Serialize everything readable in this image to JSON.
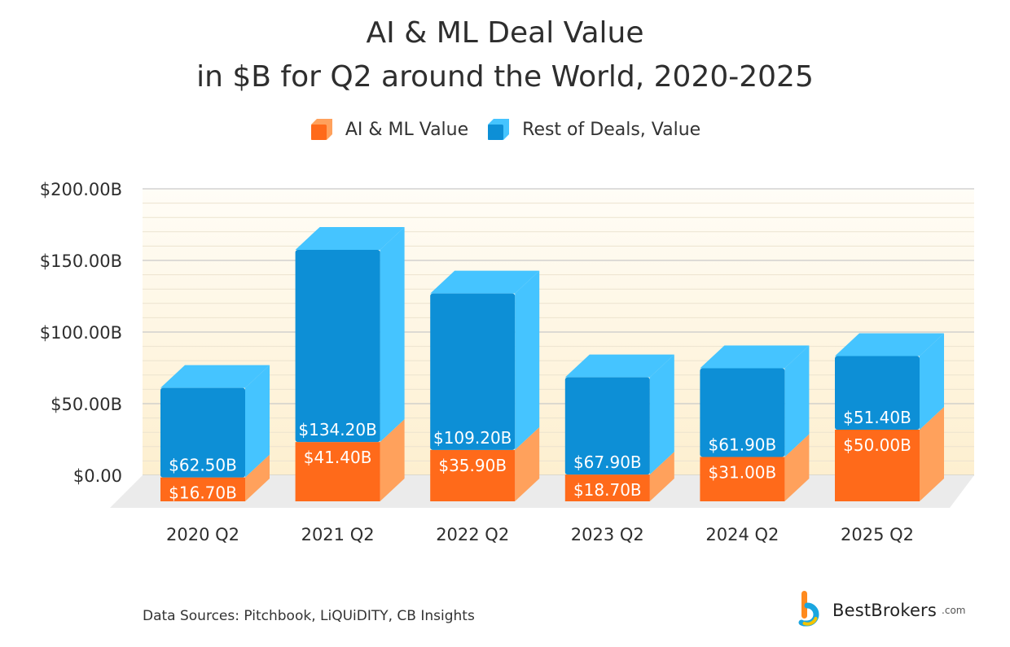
{
  "title_lines": [
    "AI & ML Deal Value",
    "in $B for Q2 around the World, 2020-2025"
  ],
  "legend": {
    "ai_label": "AI & ML Value",
    "rest_label": "Rest of Deals, Value"
  },
  "source_text": "Data Sources: Pitchbook, LiQUiDITY, CB Insights",
  "logo": {
    "name": "BestBrokers",
    "suffix": ".com",
    "icon": "bestbrokers-logo-icon"
  },
  "colors": {
    "ai_front": "#ff6a1a",
    "ai_side": "#ffa15c",
    "rest_front": "#0d8fd6",
    "rest_side": "#45c4ff",
    "rest_top": "#45c4ff",
    "plot_bg_top": "#fffdf7",
    "plot_bg_bottom": "#fdefcf",
    "floor": "#ebebeb"
  },
  "chart_data": {
    "type": "bar",
    "stacked": true,
    "categories": [
      "2020 Q2",
      "2021 Q2",
      "2022 Q2",
      "2023 Q2",
      "2024 Q2",
      "2025 Q2"
    ],
    "series": [
      {
        "name": "AI & ML Value",
        "values": [
          16.7,
          41.4,
          35.9,
          18.7,
          31.0,
          50.0
        ],
        "labels": [
          "$16.70B",
          "$41.40B",
          "$35.90B",
          "$18.70B",
          "$31.00B",
          "$50.00B"
        ]
      },
      {
        "name": "Rest of Deals, Value",
        "values": [
          62.5,
          134.2,
          109.2,
          67.9,
          61.9,
          51.4
        ],
        "labels": [
          "$62.50B",
          "$134.20B",
          "$109.20B",
          "$67.90B",
          "$61.90B",
          "$51.40B"
        ]
      }
    ],
    "yticks": [
      0,
      50,
      100,
      150,
      200
    ],
    "ytick_labels": [
      "$0.00",
      "$50.00B",
      "$100.00B",
      "$150.00B",
      "$200.00B"
    ],
    "ylim": [
      0,
      200
    ],
    "grid": true,
    "legend_position": "top-center"
  }
}
